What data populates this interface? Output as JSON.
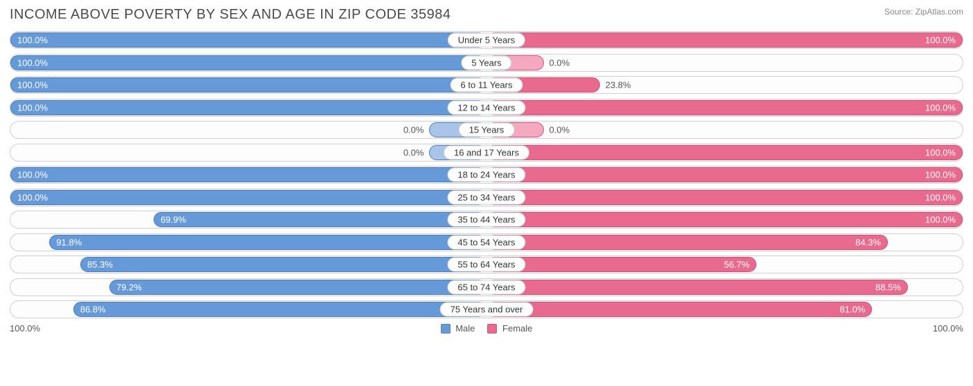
{
  "title": "INCOME ABOVE POVERTY BY SEX AND AGE IN ZIP CODE 35984",
  "source": "Source: ZipAtlas.com",
  "colors": {
    "male_fill": "#6699d8",
    "male_border": "#4b7ec0",
    "male_light": "#a9c4e8",
    "female_fill": "#e86a8e",
    "female_border": "#d44f78",
    "female_light": "#f4a9c0",
    "row_border": "#cfcfcf",
    "text": "#555555"
  },
  "axis": {
    "left": "100.0%",
    "right": "100.0%"
  },
  "legend": {
    "male": "Male",
    "female": "Female"
  },
  "rows": [
    {
      "label": "Under 5 Years",
      "male": 100.0,
      "male_txt": "100.0%",
      "female": 100.0,
      "female_txt": "100.0%",
      "male_short": false,
      "female_short": false
    },
    {
      "label": "5 Years",
      "male": 100.0,
      "male_txt": "100.0%",
      "female": 0.0,
      "female_txt": "0.0%",
      "male_short": false,
      "female_short": true
    },
    {
      "label": "6 to 11 Years",
      "male": 100.0,
      "male_txt": "100.0%",
      "female": 23.8,
      "female_txt": "23.8%",
      "male_short": false,
      "female_short": false
    },
    {
      "label": "12 to 14 Years",
      "male": 100.0,
      "male_txt": "100.0%",
      "female": 100.0,
      "female_txt": "100.0%",
      "male_short": false,
      "female_short": false
    },
    {
      "label": "15 Years",
      "male": 0.0,
      "male_txt": "0.0%",
      "female": 0.0,
      "female_txt": "0.0%",
      "male_short": true,
      "female_short": true
    },
    {
      "label": "16 and 17 Years",
      "male": 0.0,
      "male_txt": "0.0%",
      "female": 100.0,
      "female_txt": "100.0%",
      "male_short": true,
      "female_short": false
    },
    {
      "label": "18 to 24 Years",
      "male": 100.0,
      "male_txt": "100.0%",
      "female": 100.0,
      "female_txt": "100.0%",
      "male_short": false,
      "female_short": false
    },
    {
      "label": "25 to 34 Years",
      "male": 100.0,
      "male_txt": "100.0%",
      "female": 100.0,
      "female_txt": "100.0%",
      "male_short": false,
      "female_short": false
    },
    {
      "label": "35 to 44 Years",
      "male": 69.9,
      "male_txt": "69.9%",
      "female": 100.0,
      "female_txt": "100.0%",
      "male_short": false,
      "female_short": false
    },
    {
      "label": "45 to 54 Years",
      "male": 91.8,
      "male_txt": "91.8%",
      "female": 84.3,
      "female_txt": "84.3%",
      "male_short": false,
      "female_short": false
    },
    {
      "label": "55 to 64 Years",
      "male": 85.3,
      "male_txt": "85.3%",
      "female": 56.7,
      "female_txt": "56.7%",
      "male_short": false,
      "female_short": false
    },
    {
      "label": "65 to 74 Years",
      "male": 79.2,
      "male_txt": "79.2%",
      "female": 88.5,
      "female_txt": "88.5%",
      "male_short": false,
      "female_short": false
    },
    {
      "label": "75 Years and over",
      "male": 86.8,
      "male_txt": "86.8%",
      "female": 81.0,
      "female_txt": "81.0%",
      "male_short": false,
      "female_short": false
    }
  ],
  "short_bar_width_pct": 12
}
